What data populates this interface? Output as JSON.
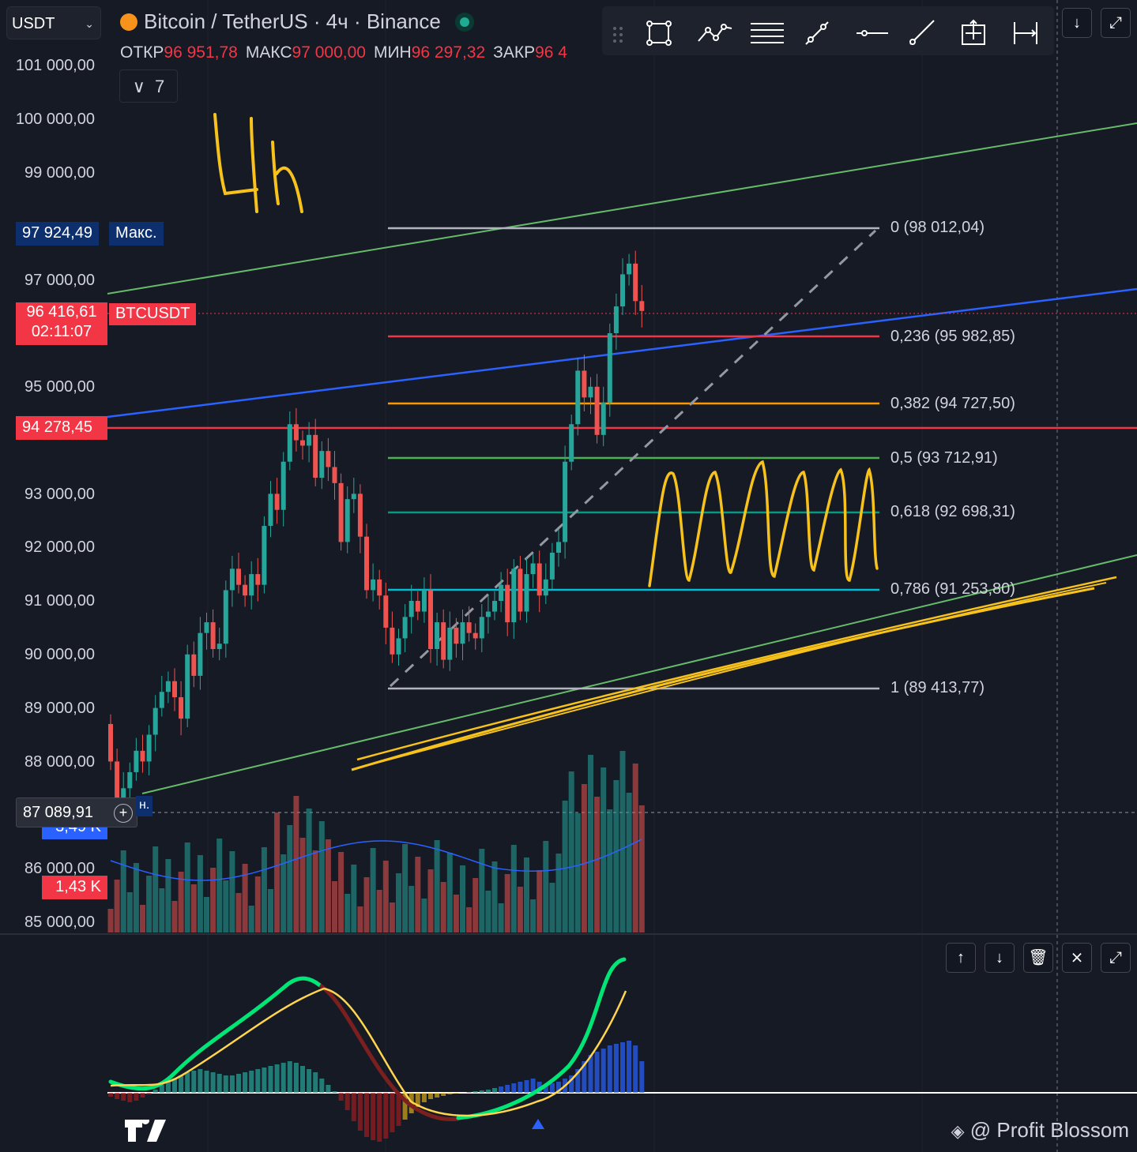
{
  "header": {
    "currency_select": "USDT",
    "title": "Bitcoin / TetherUS · 4ч · Binance",
    "ohlc": [
      {
        "key": "ОТКР",
        "value": "96 951,78"
      },
      {
        "key": "МАКС",
        "value": "97 000,00"
      },
      {
        "key": "МИН",
        "value": "96 297,32"
      },
      {
        "key": "ЗАКР",
        "value": "96 4"
      }
    ],
    "indicators_count": "7"
  },
  "toolbar": {
    "icons": [
      "drag-handle-icon",
      "rectangle-icon",
      "path-icon",
      "parallel-lines-icon",
      "trend-line-icon",
      "horizontal-line-icon",
      "ray-icon",
      "crosshair-box-icon",
      "date-range-icon"
    ],
    "side_buttons": [
      "arrow-down-icon",
      "fullscreen-icon"
    ]
  },
  "price_axis": {
    "labels": [
      {
        "text": "101 000,00",
        "price": 101000
      },
      {
        "text": "100 000,00",
        "price": 100000
      },
      {
        "text": "99 000,00",
        "price": 99000
      },
      {
        "text": "97 000,00",
        "price": 97000
      },
      {
        "text": "95 000,00",
        "price": 95000
      },
      {
        "text": "93 000,00",
        "price": 93000
      },
      {
        "text": "92 000,00",
        "price": 92000
      },
      {
        "text": "91 000,00",
        "price": 91000
      },
      {
        "text": "90 000,00",
        "price": 90000
      },
      {
        "text": "89 000,00",
        "price": 89000
      },
      {
        "text": "88 000,00",
        "price": 88000
      },
      {
        "text": "86 000,00",
        "price": 86000
      },
      {
        "text": "85 000,00",
        "price": 85000
      }
    ]
  },
  "tags": {
    "max_price": "97 924,49",
    "max_label": "Макс.",
    "current_price": "96 416,61",
    "countdown": "02:11:07",
    "symbol": "BTCUSDT",
    "level_price": "94 278,45",
    "crosshair_price": "87 089,91",
    "crosshair_suffix": "н.",
    "volume_blue": "3,49 K",
    "volume_red": "1,43 K"
  },
  "fibonacci": [
    {
      "label": "0 (98 012,04)",
      "color": "#b2b5be"
    },
    {
      "label": "0,236 (95 982,85)",
      "color": "#f23645"
    },
    {
      "label": "0,382 (94 727,50)",
      "color": "#ff9800"
    },
    {
      "label": "0,5 (93 712,91)",
      "color": "#4caf50"
    },
    {
      "label": "0,618 (92 698,31)",
      "color": "#089981"
    },
    {
      "label": "0,786 (91 253,80)",
      "color": "#00bcd4"
    },
    {
      "label": "1 (89 413,77)",
      "color": "#b2b5be"
    }
  ],
  "annotation": {
    "handwritten": "4h",
    "color": "#f7c21b"
  },
  "pane_buttons": [
    "move-up-icon",
    "move-down-icon",
    "delete-icon",
    "collapse-icon",
    "maximize-icon"
  ],
  "watermark": "@ Profit Blossom",
  "colors": {
    "background": "#161a25",
    "up": "#26a69a",
    "down": "#ef5350",
    "accent": "#2962ff"
  }
}
